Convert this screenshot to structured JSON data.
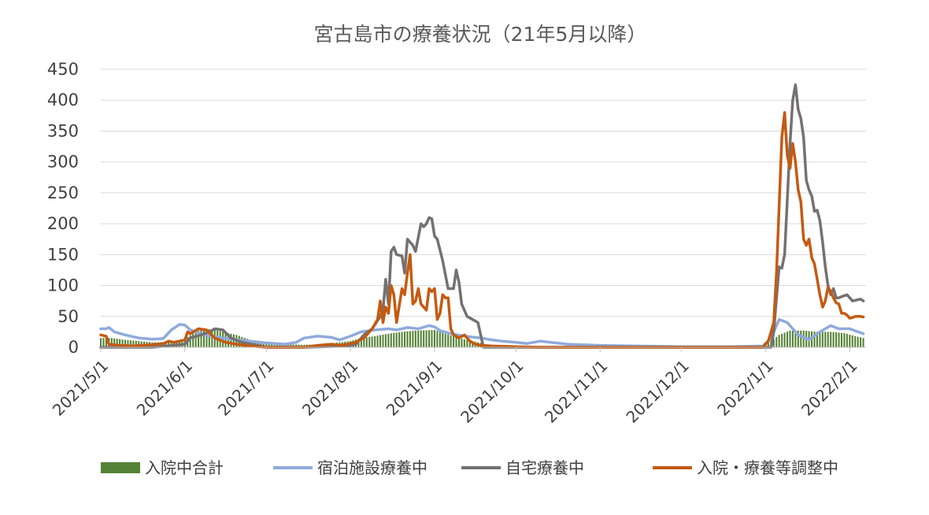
{
  "chart_data": {
    "type": "line",
    "title": "宮古島市の療養状況（21年5月以降）",
    "xlabel": "",
    "ylabel": "",
    "ylim": [
      0,
      450
    ],
    "y_ticks": [
      "0",
      "50",
      "100",
      "150",
      "200",
      "250",
      "300",
      "350",
      "400",
      "450"
    ],
    "x_ticks": [
      "2021/5/1",
      "2021/6/1",
      "2021/7/1",
      "2021/8/1",
      "2021/9/1",
      "2021/10/1",
      "2021/11/1",
      "2021/12/1",
      "2022/1/1",
      "2022/2/1"
    ],
    "grid": "horizontal",
    "legend_position": "bottom",
    "colors": {
      "hospitalized": "#548235",
      "hotel": "#8faadc",
      "home": "#767171",
      "adjusting": "#c55a11",
      "grid": "#d9d9d9",
      "axis": "#bfbfbf"
    },
    "series": [
      {
        "name": "入院中合計",
        "kind": "bar",
        "x": [
          "2021/5/1",
          "2021/5/5",
          "2021/5/10",
          "2021/5/15",
          "2021/5/20",
          "2021/5/25",
          "2021/5/28",
          "2021/6/1",
          "2021/6/5",
          "2021/6/8",
          "2021/6/12",
          "2021/6/15",
          "2021/6/20",
          "2021/6/25",
          "2021/7/1",
          "2021/7/8",
          "2021/7/15",
          "2021/7/22",
          "2021/8/1",
          "2021/8/5",
          "2021/8/10",
          "2021/8/15",
          "2021/8/20",
          "2021/8/25",
          "2021/9/1",
          "2021/9/5",
          "2021/9/10",
          "2021/9/15",
          "2021/9/20",
          "2021/9/25",
          "2021/10/1",
          "2021/10/10",
          "2021/11/1",
          "2021/12/1",
          "2021/12/31",
          "2022/1/3",
          "2022/1/6",
          "2022/1/10",
          "2022/1/15",
          "2022/1/20",
          "2022/1/25",
          "2022/1/30",
          "2022/2/3",
          "2022/2/6"
        ],
        "values": [
          15,
          15,
          12,
          10,
          8,
          8,
          10,
          14,
          25,
          30,
          28,
          25,
          20,
          12,
          8,
          5,
          4,
          5,
          10,
          15,
          18,
          22,
          25,
          27,
          28,
          22,
          15,
          10,
          5,
          3,
          2,
          1,
          0,
          0,
          2,
          10,
          20,
          27,
          27,
          25,
          25,
          23,
          18,
          15
        ]
      },
      {
        "name": "宿泊施設療養中",
        "kind": "line",
        "x": [
          "2021/5/1",
          "2021/5/3",
          "2021/5/4",
          "2021/5/6",
          "2021/5/10",
          "2021/5/15",
          "2021/5/20",
          "2021/5/24",
          "2021/5/27",
          "2021/5/30",
          "2021/6/1",
          "2021/6/3",
          "2021/6/8",
          "2021/6/12",
          "2021/6/18",
          "2021/6/25",
          "2021/7/1",
          "2021/7/8",
          "2021/7/12",
          "2021/7/15",
          "2021/7/20",
          "2021/7/25",
          "2021/7/28",
          "2021/8/1",
          "2021/8/5",
          "2021/8/10",
          "2021/8/15",
          "2021/8/18",
          "2021/8/22",
          "2021/8/26",
          "2021/8/30",
          "2021/9/1",
          "2021/9/3",
          "2021/9/7",
          "2021/9/12",
          "2021/9/18",
          "2021/9/22",
          "2021/9/26",
          "2021/10/1",
          "2021/10/5",
          "2021/10/10",
          "2021/10/20",
          "2021/11/1",
          "2021/11/15",
          "2021/12/1",
          "2021/12/20",
          "2021/12/31",
          "2022/1/3",
          "2022/1/6",
          "2022/1/9",
          "2022/1/13",
          "2022/1/17",
          "2022/1/21",
          "2022/1/25",
          "2022/1/28",
          "2022/2/1",
          "2022/2/4",
          "2022/2/6"
        ],
        "values": [
          30,
          30,
          32,
          25,
          20,
          15,
          13,
          14,
          28,
          37,
          36,
          28,
          20,
          17,
          13,
          10,
          7,
          5,
          8,
          15,
          18,
          16,
          12,
          18,
          25,
          28,
          30,
          28,
          32,
          30,
          35,
          33,
          27,
          22,
          18,
          15,
          12,
          10,
          8,
          6,
          10,
          5,
          3,
          2,
          1,
          1,
          2,
          15,
          45,
          40,
          20,
          12,
          25,
          35,
          30,
          30,
          25,
          22
        ]
      },
      {
        "name": "自宅療養中",
        "kind": "line",
        "x": [
          "2021/5/1",
          "2021/5/20",
          "2021/6/1",
          "2021/6/3",
          "2021/6/7",
          "2021/6/10",
          "2021/6/12",
          "2021/6/15",
          "2021/6/18",
          "2021/6/22",
          "2021/6/28",
          "2021/7/1",
          "2021/7/15",
          "2021/7/31",
          "2021/8/3",
          "2021/8/6",
          "2021/8/9",
          "2021/8/12",
          "2021/8/13",
          "2021/8/14",
          "2021/8/15",
          "2021/8/16",
          "2021/8/17",
          "2021/8/18",
          "2021/8/20",
          "2021/8/21",
          "2021/8/22",
          "2021/8/24",
          "2021/8/25",
          "2021/8/27",
          "2021/8/28",
          "2021/8/29",
          "2021/8/30",
          "2021/8/31",
          "2021/9/1",
          "2021/9/2",
          "2021/9/4",
          "2021/9/6",
          "2021/9/8",
          "2021/9/9",
          "2021/9/10",
          "2021/9/11",
          "2021/9/13",
          "2021/9/15",
          "2021/9/17",
          "2021/9/19",
          "2021/9/23",
          "2021/10/1",
          "2021/11/1",
          "2021/12/1",
          "2022/1/1",
          "2022/1/3",
          "2022/1/4",
          "2022/1/5",
          "2022/1/6",
          "2022/1/7",
          "2022/1/8",
          "2022/1/10",
          "2022/1/11",
          "2022/1/12",
          "2022/1/13",
          "2022/1/14",
          "2022/1/15",
          "2022/1/16",
          "2022/1/17",
          "2022/1/18",
          "2022/1/19",
          "2022/1/20",
          "2022/1/21",
          "2022/1/22",
          "2022/1/23",
          "2022/1/24",
          "2022/1/25",
          "2022/1/26",
          "2022/1/27",
          "2022/1/28",
          "2022/1/29",
          "2022/1/31",
          "2022/2/1",
          "2022/2/2",
          "2022/2/3",
          "2022/2/5",
          "2022/2/6"
        ],
        "values": [
          0,
          0,
          5,
          15,
          20,
          25,
          30,
          28,
          15,
          8,
          3,
          0,
          0,
          2,
          5,
          20,
          30,
          50,
          60,
          110,
          70,
          155,
          162,
          150,
          148,
          120,
          175,
          165,
          155,
          200,
          195,
          200,
          210,
          208,
          180,
          175,
          140,
          95,
          95,
          125,
          105,
          70,
          50,
          45,
          40,
          0,
          0,
          0,
          0,
          0,
          0,
          0,
          25,
          80,
          130,
          128,
          150,
          330,
          400,
          425,
          385,
          370,
          340,
          270,
          255,
          245,
          220,
          222,
          205,
          170,
          130,
          100,
          85,
          95,
          80,
          80,
          82,
          85,
          80,
          75,
          76,
          78,
          75
        ]
      },
      {
        "name": "入院・療養等調整中",
        "kind": "line",
        "x": [
          "2021/5/1",
          "2021/5/3",
          "2021/5/4",
          "2021/5/8",
          "2021/5/12",
          "2021/5/16",
          "2021/5/20",
          "2021/5/24",
          "2021/5/26",
          "2021/5/28",
          "2021/6/1",
          "2021/6/2",
          "2021/6/3",
          "2021/6/6",
          "2021/6/9",
          "2021/6/12",
          "2021/6/16",
          "2021/6/20",
          "2021/6/25",
          "2021/7/1",
          "2021/7/15",
          "2021/7/20",
          "2021/7/25",
          "2021/7/28",
          "2021/7/31",
          "2021/8/3",
          "2021/8/6",
          "2021/8/9",
          "2021/8/11",
          "2021/8/12",
          "2021/8/13",
          "2021/8/14",
          "2021/8/15",
          "2021/8/16",
          "2021/8/17",
          "2021/8/18",
          "2021/8/20",
          "2021/8/21",
          "2021/8/22",
          "2021/8/23",
          "2021/8/24",
          "2021/8/25",
          "2021/8/26",
          "2021/8/27",
          "2021/8/28",
          "2021/8/29",
          "2021/8/30",
          "2021/8/31",
          "2021/9/1",
          "2021/9/2",
          "2021/9/3",
          "2021/9/4",
          "2021/9/5",
          "2021/9/6",
          "2021/9/7",
          "2021/9/8",
          "2021/9/10",
          "2021/9/12",
          "2021/9/14",
          "2021/9/16",
          "2021/9/18",
          "2021/9/22",
          "2021/10/1",
          "2021/10/10",
          "2021/11/1",
          "2021/12/1",
          "2021/12/31",
          "2022/1/2",
          "2022/1/4",
          "2022/1/5",
          "2022/1/6",
          "2022/1/7",
          "2022/1/8",
          "2022/1/9",
          "2022/1/10",
          "2022/1/11",
          "2022/1/12",
          "2022/1/13",
          "2022/1/14",
          "2022/1/15",
          "2022/1/16",
          "2022/1/17",
          "2022/1/18",
          "2022/1/19",
          "2022/1/20",
          "2022/1/21",
          "2022/1/22",
          "2022/1/23",
          "2022/1/24",
          "2022/1/25",
          "2022/1/26",
          "2022/1/27",
          "2022/1/28",
          "2022/1/29",
          "2022/1/30",
          "2022/1/31",
          "2022/2/1",
          "2022/2/2",
          "2022/2/3",
          "2022/2/5",
          "2022/2/6"
        ],
        "values": [
          20,
          18,
          5,
          3,
          2,
          3,
          4,
          6,
          10,
          8,
          12,
          25,
          22,
          30,
          28,
          15,
          8,
          5,
          2,
          0,
          0,
          3,
          5,
          3,
          5,
          8,
          15,
          30,
          45,
          75,
          40,
          65,
          55,
          100,
          85,
          40,
          95,
          85,
          120,
          150,
          70,
          75,
          95,
          70,
          65,
          60,
          95,
          90,
          95,
          45,
          55,
          85,
          80,
          80,
          30,
          20,
          15,
          20,
          10,
          5,
          3,
          2,
          1,
          0,
          0,
          0,
          0,
          10,
          40,
          120,
          230,
          340,
          380,
          310,
          290,
          330,
          300,
          255,
          235,
          175,
          165,
          175,
          145,
          135,
          110,
          85,
          65,
          75,
          97,
          90,
          80,
          72,
          70,
          55,
          55,
          52,
          47,
          48,
          50,
          50,
          49
        ]
      }
    ]
  }
}
